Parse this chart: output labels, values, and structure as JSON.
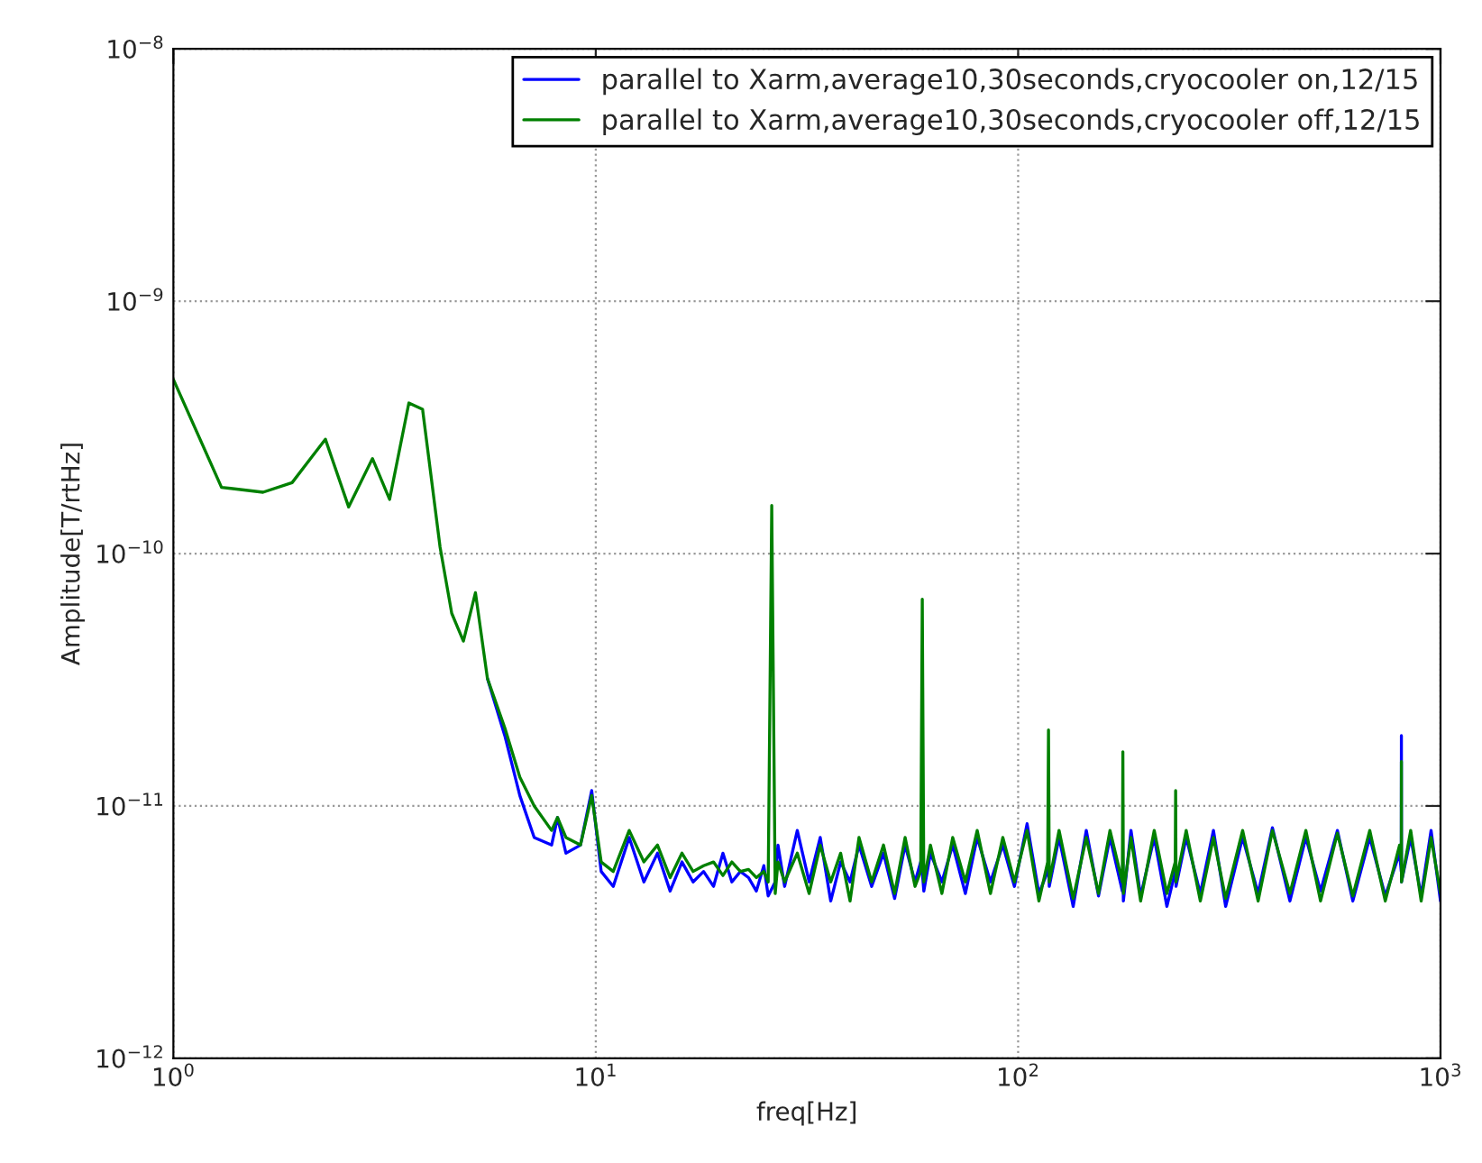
{
  "chart_data": {
    "type": "line",
    "xlabel": "freq[Hz]",
    "ylabel": "Amplitude[T/rtHz]",
    "log": "xy",
    "grid": true,
    "legend": "top right",
    "line_style": "solid",
    "xlim": [
      1,
      1000
    ],
    "xticks": [
      {
        "value": 1,
        "label": "10$^{0}$"
      },
      {
        "value": 10,
        "label": "10$^{1}$"
      },
      {
        "value": 100,
        "label": "10$^{2}$"
      },
      {
        "value": 1000,
        "label": "10$^{3}$"
      }
    ],
    "ylim": [
      1e-12,
      1e-08
    ],
    "yticks": [
      {
        "value": 1e-12,
        "label": "10$^{−12}$"
      },
      {
        "value": 1e-11,
        "label": "10$^{−11}$"
      },
      {
        "value": 1e-10,
        "label": "10$^{−10}$"
      },
      {
        "value": 1e-09,
        "label": "10$^{−9}$"
      },
      {
        "value": 1e-08,
        "label": "10$^{−8}$"
      }
    ],
    "series": [
      {
        "name": "parallel to Xarm,average10,30seconds,cryocooler on,12/15",
        "color": "#0000ff",
        "x": [
          5.54,
          6.09,
          6.61,
          7.15,
          7.86,
          8.12,
          8.5,
          9.2,
          9.78,
          10.3,
          11,
          12,
          13,
          14,
          15,
          16,
          17,
          18,
          19,
          20,
          21,
          22,
          23,
          24,
          25,
          25.6,
          26.6,
          27,
          28,
          30,
          32,
          34,
          36,
          38,
          40,
          42,
          45,
          48,
          51,
          54,
          57,
          58.8,
          59.3,
          59.8,
          62,
          66,
          70,
          75,
          80,
          86,
          92,
          98,
          105,
          112,
          117.5,
          118,
          118.5,
          125,
          135,
          145,
          155,
          165,
          176.5,
          177,
          177.5,
          185,
          195,
          210,
          225,
          235.5,
          236,
          236.5,
          250,
          270,
          290,
          310,
          340,
          370,
          400,
          440,
          480,
          520,
          570,
          620,
          680,
          740,
          800,
          807.5,
          808,
          808.5,
          850,
          900,
          950,
          1000
        ],
        "values": [
          3.2e-11,
          1.9e-11,
          1.1e-11,
          7.5e-12,
          7e-12,
          9e-12,
          6.5e-12,
          7e-12,
          1.15e-11,
          5.5e-12,
          4.8e-12,
          7.5e-12,
          5e-12,
          6.5e-12,
          4.6e-12,
          6e-12,
          5e-12,
          5.5e-12,
          4.8e-12,
          6.5e-12,
          5e-12,
          5.5e-12,
          5.2e-12,
          4.6e-12,
          5.8e-12,
          4.4e-12,
          5e-12,
          7e-12,
          4.8e-12,
          8e-12,
          5e-12,
          7.5e-12,
          4.2e-12,
          6e-12,
          5e-12,
          7e-12,
          4.8e-12,
          6.5e-12,
          4.3e-12,
          7e-12,
          5e-12,
          6e-12,
          5.5e-12,
          4.6e-12,
          6.5e-12,
          5e-12,
          7e-12,
          4.5e-12,
          7.5e-12,
          5e-12,
          7e-12,
          4.8e-12,
          8.5e-12,
          4.5e-12,
          5.5e-12,
          6e-12,
          4.8e-12,
          7.5e-12,
          4e-12,
          8e-12,
          4.4e-12,
          7.5e-12,
          4.6e-12,
          6e-12,
          4.2e-12,
          8e-12,
          4.4e-12,
          7.5e-12,
          4e-12,
          5.5e-12,
          6e-12,
          4.8e-12,
          7.5e-12,
          4.5e-12,
          8e-12,
          4e-12,
          7.5e-12,
          4.5e-12,
          8.2e-12,
          4.2e-12,
          7.5e-12,
          4.6e-12,
          8e-12,
          4.2e-12,
          7.5e-12,
          4.4e-12,
          6.5e-12,
          5.5e-12,
          1.9e-11,
          5e-12,
          7.5e-12,
          4.4e-12,
          8e-12,
          4.2e-12
        ]
      },
      {
        "name": "parallel to Xarm,average10,30seconds,cryocooler off,12/15",
        "color": "#008000",
        "x": [
          1.0,
          1.3,
          1.63,
          1.91,
          2.29,
          2.6,
          2.96,
          3.25,
          3.61,
          3.89,
          4.28,
          4.56,
          4.86,
          5.19,
          5.54,
          6.09,
          6.61,
          7.15,
          7.86,
          8.12,
          8.5,
          9.2,
          9.78,
          10.3,
          11,
          12,
          13,
          14,
          15,
          16,
          17,
          18,
          19,
          20,
          21,
          22,
          23,
          24,
          25,
          25.6,
          26.1,
          26.6,
          27,
          28,
          30,
          32,
          34,
          36,
          38,
          40,
          42,
          45,
          48,
          51,
          54,
          57,
          58.8,
          59.3,
          59.8,
          62,
          66,
          70,
          75,
          80,
          86,
          92,
          98,
          105,
          112,
          117.5,
          118,
          118.5,
          125,
          135,
          145,
          155,
          165,
          176.5,
          177,
          177.5,
          185,
          195,
          210,
          225,
          235.5,
          236,
          236.5,
          250,
          270,
          290,
          310,
          340,
          370,
          400,
          440,
          480,
          520,
          570,
          620,
          680,
          740,
          800,
          807.5,
          808,
          808.5,
          850,
          900,
          950,
          1000
        ],
        "values": [
          4.9e-10,
          1.83e-10,
          1.75e-10,
          1.91e-10,
          2.84e-10,
          1.53e-10,
          2.38e-10,
          1.64e-10,
          3.95e-10,
          3.73e-10,
          1.06e-10,
          5.8e-11,
          4.5e-11,
          7e-11,
          3.2e-11,
          2.04e-11,
          1.3e-11,
          1e-11,
          8e-12,
          9e-12,
          7.5e-12,
          7e-12,
          1.1e-11,
          6e-12,
          5.5e-12,
          8e-12,
          6e-12,
          7e-12,
          5.2e-12,
          6.5e-12,
          5.5e-12,
          5.8e-12,
          6e-12,
          5.3e-12,
          6e-12,
          5.5e-12,
          5.6e-12,
          5.2e-12,
          5.5e-12,
          5e-12,
          1.55e-10,
          4.5e-12,
          6e-12,
          5e-12,
          6.5e-12,
          4.5e-12,
          7e-12,
          5e-12,
          6.5e-12,
          4.2e-12,
          7.5e-12,
          5e-12,
          7e-12,
          4.5e-12,
          7.5e-12,
          4.8e-12,
          5.5e-12,
          6.6e-11,
          5e-12,
          7e-12,
          4.5e-12,
          7.5e-12,
          5e-12,
          8e-12,
          4.5e-12,
          7.5e-12,
          5e-12,
          8e-12,
          4.2e-12,
          6e-12,
          2e-11,
          5e-12,
          8e-12,
          4.3e-12,
          7.5e-12,
          4.5e-12,
          8e-12,
          5e-12,
          1.64e-11,
          4.5e-12,
          7.5e-12,
          4.2e-12,
          8e-12,
          4.5e-12,
          6e-12,
          1.15e-11,
          5e-12,
          8e-12,
          4.2e-12,
          7.5e-12,
          4.3e-12,
          8e-12,
          4.2e-12,
          8e-12,
          4.5e-12,
          8e-12,
          4.2e-12,
          7.8e-12,
          4.4e-12,
          8e-12,
          4.2e-12,
          7e-12,
          6e-12,
          1.5e-11,
          5e-12,
          8e-12,
          4.2e-12,
          7.5e-12,
          4.5e-12
        ]
      }
    ]
  }
}
